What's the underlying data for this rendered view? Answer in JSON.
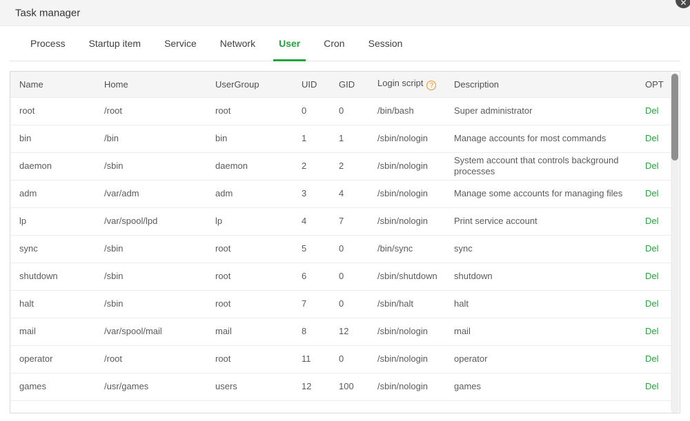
{
  "colors": {
    "accent_green": "#20a53a",
    "help_orange": "#ff9216"
  },
  "window": {
    "title": "Task manager",
    "close_glyph": "✕"
  },
  "tabs": [
    {
      "label": "Process",
      "active": false
    },
    {
      "label": "Startup item",
      "active": false
    },
    {
      "label": "Service",
      "active": false
    },
    {
      "label": "Network",
      "active": false
    },
    {
      "label": "User",
      "active": true
    },
    {
      "label": "Cron",
      "active": false
    },
    {
      "label": "Session",
      "active": false
    }
  ],
  "table": {
    "columns": [
      "Name",
      "Home",
      "UserGroup",
      "UID",
      "GID",
      "Login script",
      "Description",
      "OPT"
    ],
    "login_script_help_glyph": "?",
    "action_label": "Del",
    "rows": [
      {
        "name": "root",
        "home": "/root",
        "usergroup": "root",
        "uid": "0",
        "gid": "0",
        "login_script": "/bin/bash",
        "description": "Super administrator"
      },
      {
        "name": "bin",
        "home": "/bin",
        "usergroup": "bin",
        "uid": "1",
        "gid": "1",
        "login_script": "/sbin/nologin",
        "description": "Manage accounts for most commands"
      },
      {
        "name": "daemon",
        "home": "/sbin",
        "usergroup": "daemon",
        "uid": "2",
        "gid": "2",
        "login_script": "/sbin/nologin",
        "description": "System account that controls background processes"
      },
      {
        "name": "adm",
        "home": "/var/adm",
        "usergroup": "adm",
        "uid": "3",
        "gid": "4",
        "login_script": "/sbin/nologin",
        "description": "Manage some accounts for managing files"
      },
      {
        "name": "lp",
        "home": "/var/spool/lpd",
        "usergroup": "lp",
        "uid": "4",
        "gid": "7",
        "login_script": "/sbin/nologin",
        "description": "Print service account"
      },
      {
        "name": "sync",
        "home": "/sbin",
        "usergroup": "root",
        "uid": "5",
        "gid": "0",
        "login_script": "/bin/sync",
        "description": "sync"
      },
      {
        "name": "shutdown",
        "home": "/sbin",
        "usergroup": "root",
        "uid": "6",
        "gid": "0",
        "login_script": "/sbin/shutdown",
        "description": "shutdown"
      },
      {
        "name": "halt",
        "home": "/sbin",
        "usergroup": "root",
        "uid": "7",
        "gid": "0",
        "login_script": "/sbin/halt",
        "description": "halt"
      },
      {
        "name": "mail",
        "home": "/var/spool/mail",
        "usergroup": "mail",
        "uid": "8",
        "gid": "12",
        "login_script": "/sbin/nologin",
        "description": "mail"
      },
      {
        "name": "operator",
        "home": "/root",
        "usergroup": "root",
        "uid": "11",
        "gid": "0",
        "login_script": "/sbin/nologin",
        "description": "operator"
      },
      {
        "name": "games",
        "home": "/usr/games",
        "usergroup": "users",
        "uid": "12",
        "gid": "100",
        "login_script": "/sbin/nologin",
        "description": "games"
      }
    ]
  }
}
